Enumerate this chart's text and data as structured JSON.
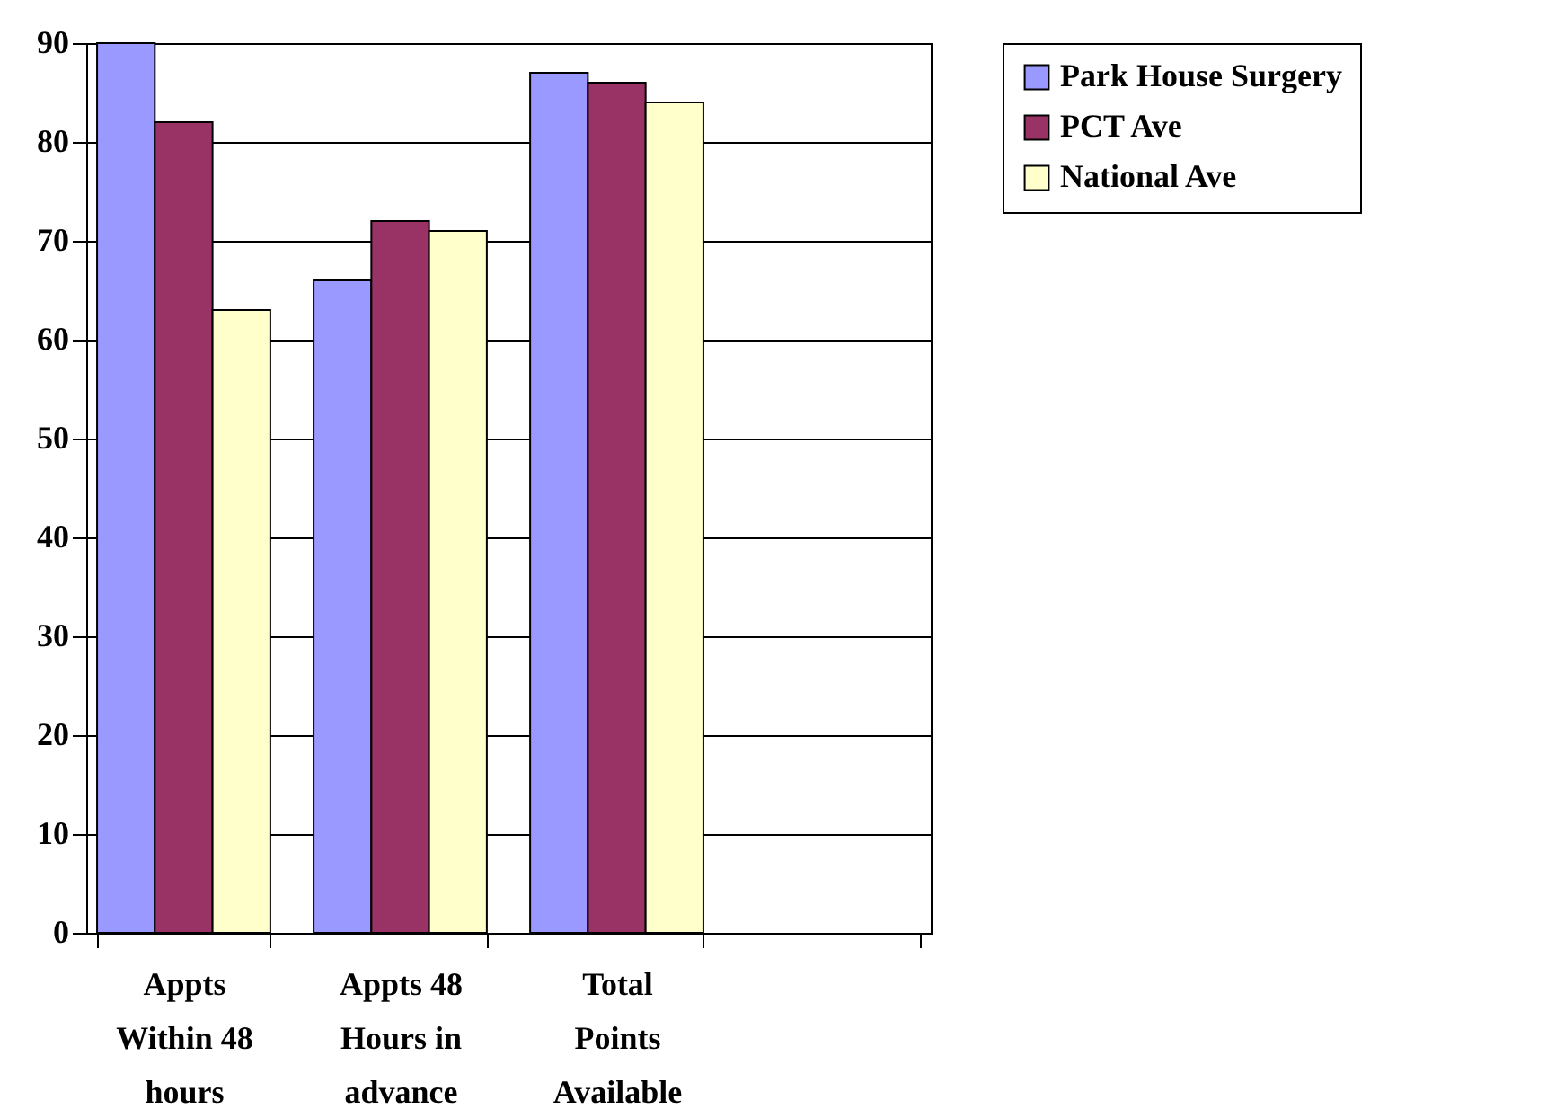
{
  "chart_data": {
    "type": "bar",
    "categories": [
      "Appts Within 48 hours",
      "Appts 48 Hours in advance",
      "Total Points Available",
      null
    ],
    "series": [
      {
        "name": "Park House Surgery",
        "color": "#9999ff",
        "values": [
          90,
          66,
          87,
          null
        ]
      },
      {
        "name": "PCT Ave",
        "color": "#993366",
        "values": [
          82,
          72,
          86,
          null
        ]
      },
      {
        "name": "National Ave",
        "color": "#ffffcc",
        "values": [
          63,
          71,
          84,
          null
        ]
      }
    ],
    "ylim": [
      0,
      90
    ],
    "yticks": [
      0,
      10,
      20,
      30,
      40,
      50,
      60,
      70,
      80,
      90
    ],
    "grid": "y",
    "legend": "right"
  }
}
